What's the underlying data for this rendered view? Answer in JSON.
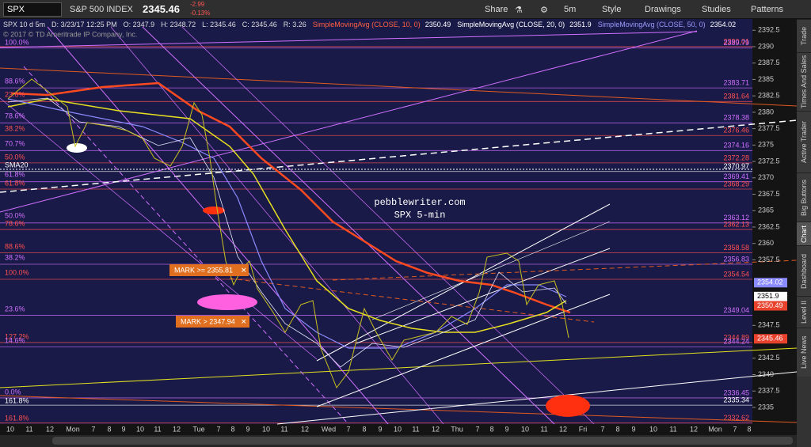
{
  "toolbar": {
    "symbol": "SPX",
    "name": "S&P 500 INDEX",
    "last": "2345.46",
    "change": "-2.99",
    "change_pct": "-0.13%",
    "buttons": [
      "Share",
      "5m",
      "Style",
      "Drawings",
      "Studies",
      "Patterns"
    ]
  },
  "header": {
    "fields": [
      "SPX 10 d 5m",
      "D: 3/23/17 12:25 PM",
      "O: 2347.9",
      "H: 2348.72",
      "L: 2345.46",
      "C: 2345.46",
      "R: 3.26"
    ],
    "studies": [
      {
        "name": "SimpleMovingAvg (CLOSE, 10, 0)",
        "value": "2350.49"
      },
      {
        "name": "SimpleMovingAvg (CLOSE, 20, 0)",
        "value": "2351.9"
      },
      {
        "name": "SimpleMovingAvg (CLOSE, 50, 0)",
        "value": "2354.02"
      }
    ],
    "copyright": "© 2017 © TD Ameritrade IP Company, Inc."
  },
  "price_axis": [
    "2392.5",
    "2390",
    "2387.5",
    "2385",
    "2382.5",
    "2380",
    "2377.5",
    "2375",
    "2372.5",
    "2370",
    "2367.5",
    "2365",
    "2362.5",
    "2360",
    "2357.5",
    "2347.5",
    "2342.5",
    "2340",
    "2337.5",
    "2335"
  ],
  "badges": [
    {
      "label": "2354.02",
      "color": "#8a8aff"
    },
    {
      "label": "2351.9",
      "color": "#ffffff"
    },
    {
      "label": "2350.49",
      "color": "#e8412c"
    },
    {
      "label": "2345.46",
      "color": "#e8412c"
    }
  ],
  "levels": [
    {
      "label": "2390.01",
      "color": "#ff5050"
    },
    {
      "label": "2389.79",
      "color": "#d070ff"
    },
    {
      "label": "2383.71",
      "color": "#d070ff"
    },
    {
      "label": "2381.64",
      "color": "#ff5050"
    },
    {
      "label": "2378.38",
      "color": "#d070ff"
    },
    {
      "label": "2376.46",
      "color": "#ff5050"
    },
    {
      "label": "2374.16",
      "color": "#d070ff"
    },
    {
      "label": "2372.28",
      "color": "#ff5050"
    },
    {
      "label": "2370.97",
      "color": "#ffffff"
    },
    {
      "label": "2369.41",
      "color": "#d070ff"
    },
    {
      "label": "2368.29",
      "color": "#ff5050"
    },
    {
      "label": "2363.12",
      "color": "#d070ff"
    },
    {
      "label": "2362.13",
      "color": "#ff5050"
    },
    {
      "label": "2358.58",
      "color": "#ff5050"
    },
    {
      "label": "2356.83",
      "color": "#d070ff"
    },
    {
      "label": "2354.54",
      "color": "#ff5050"
    },
    {
      "label": "2349.04",
      "color": "#d070ff"
    },
    {
      "label": "2344.89",
      "color": "#ff5050"
    },
    {
      "label": "2344.24",
      "color": "#d070ff"
    },
    {
      "label": "2336.45",
      "color": "#d070ff"
    },
    {
      "label": "2335.34",
      "color": "#ffffff"
    },
    {
      "label": "2332.62",
      "color": "#ff5050"
    }
  ],
  "fib_labels": [
    "100.0%",
    "88.6%",
    "23.6%",
    "78.6%",
    "38.2%",
    "70.7%",
    "50.0%",
    "SMA20",
    "61.8%",
    "61.8%",
    "50.0%",
    "78.6%",
    "88.6%",
    "38.2%",
    "100.0%",
    "23.6%",
    "127.2%",
    "14.6%",
    "0.0%",
    "161.8%",
    "161.8%"
  ],
  "watermark": [
    "pebblewriter.com",
    "SPX 5-min"
  ],
  "alerts": [
    "MARK >= 2355.81",
    "MARK > 2347.94"
  ],
  "time_axis": [
    "10",
    "11",
    "12",
    "Mon",
    "7",
    "8",
    "9",
    "10",
    "11",
    "12",
    "Tue",
    "7",
    "8",
    "9",
    "10",
    "11",
    "12",
    "Wed",
    "7",
    "8",
    "9",
    "10",
    "11",
    "12",
    "Thu",
    "7",
    "8",
    "9",
    "10",
    "11",
    "12",
    "Fri",
    "7",
    "8",
    "9",
    "10",
    "11",
    "12",
    "Mon",
    "7",
    "8"
  ],
  "side_tabs": [
    "Trade",
    "Times And Sales",
    "Active Trader",
    "Big Buttons",
    "Chart",
    "Dashboard",
    "Level II",
    "Live News"
  ]
}
